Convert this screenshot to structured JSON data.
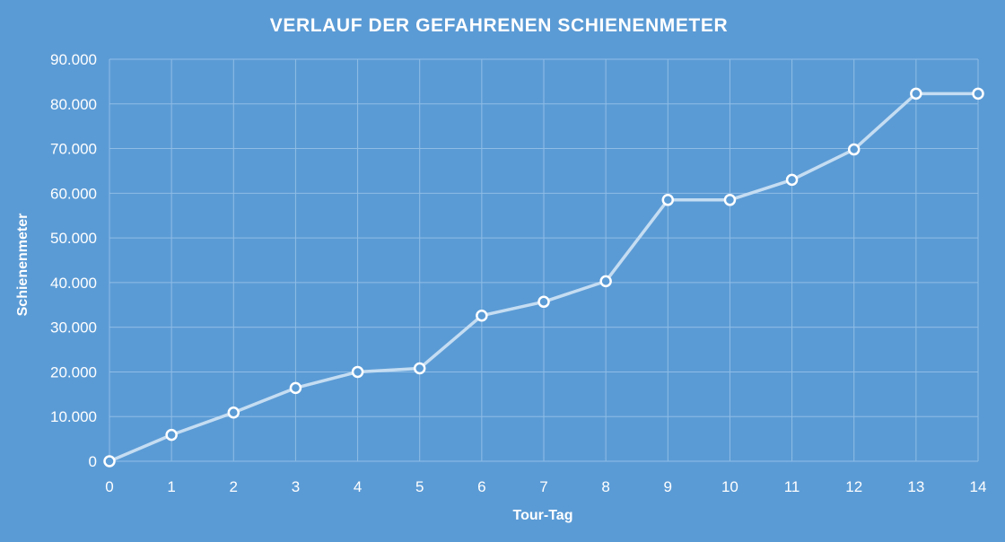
{
  "chart_data": {
    "type": "line",
    "title": "VERLAUF DER GEFAHRENEN SCHIENENMETER",
    "xlabel": "Tour-Tag",
    "ylabel": "Schienenmeter",
    "xlim": [
      0,
      14
    ],
    "ylim": [
      0,
      90000
    ],
    "x_ticks": [
      0,
      1,
      2,
      3,
      4,
      5,
      6,
      7,
      8,
      9,
      10,
      11,
      12,
      13,
      14
    ],
    "y_ticks": [
      0,
      10000,
      20000,
      30000,
      40000,
      50000,
      60000,
      70000,
      80000,
      90000
    ],
    "y_tick_labels": [
      "0",
      "10.000",
      "20.000",
      "30.000",
      "40.000",
      "50.000",
      "60.000",
      "70.000",
      "80.000",
      "90.000"
    ],
    "grid": true,
    "line_color": "#c5ddf2",
    "marker_stroke": "#ffffff",
    "background": "#5b9bd5",
    "series": [
      {
        "x": [
          0,
          1,
          2,
          3,
          4,
          5,
          6,
          7,
          8,
          9,
          10,
          11,
          12,
          13,
          14
        ],
        "values": [
          0,
          5900,
          10900,
          16400,
          20000,
          20800,
          32600,
          35700,
          40300,
          58500,
          58500,
          63000,
          69800,
          82300,
          82300
        ]
      }
    ]
  }
}
